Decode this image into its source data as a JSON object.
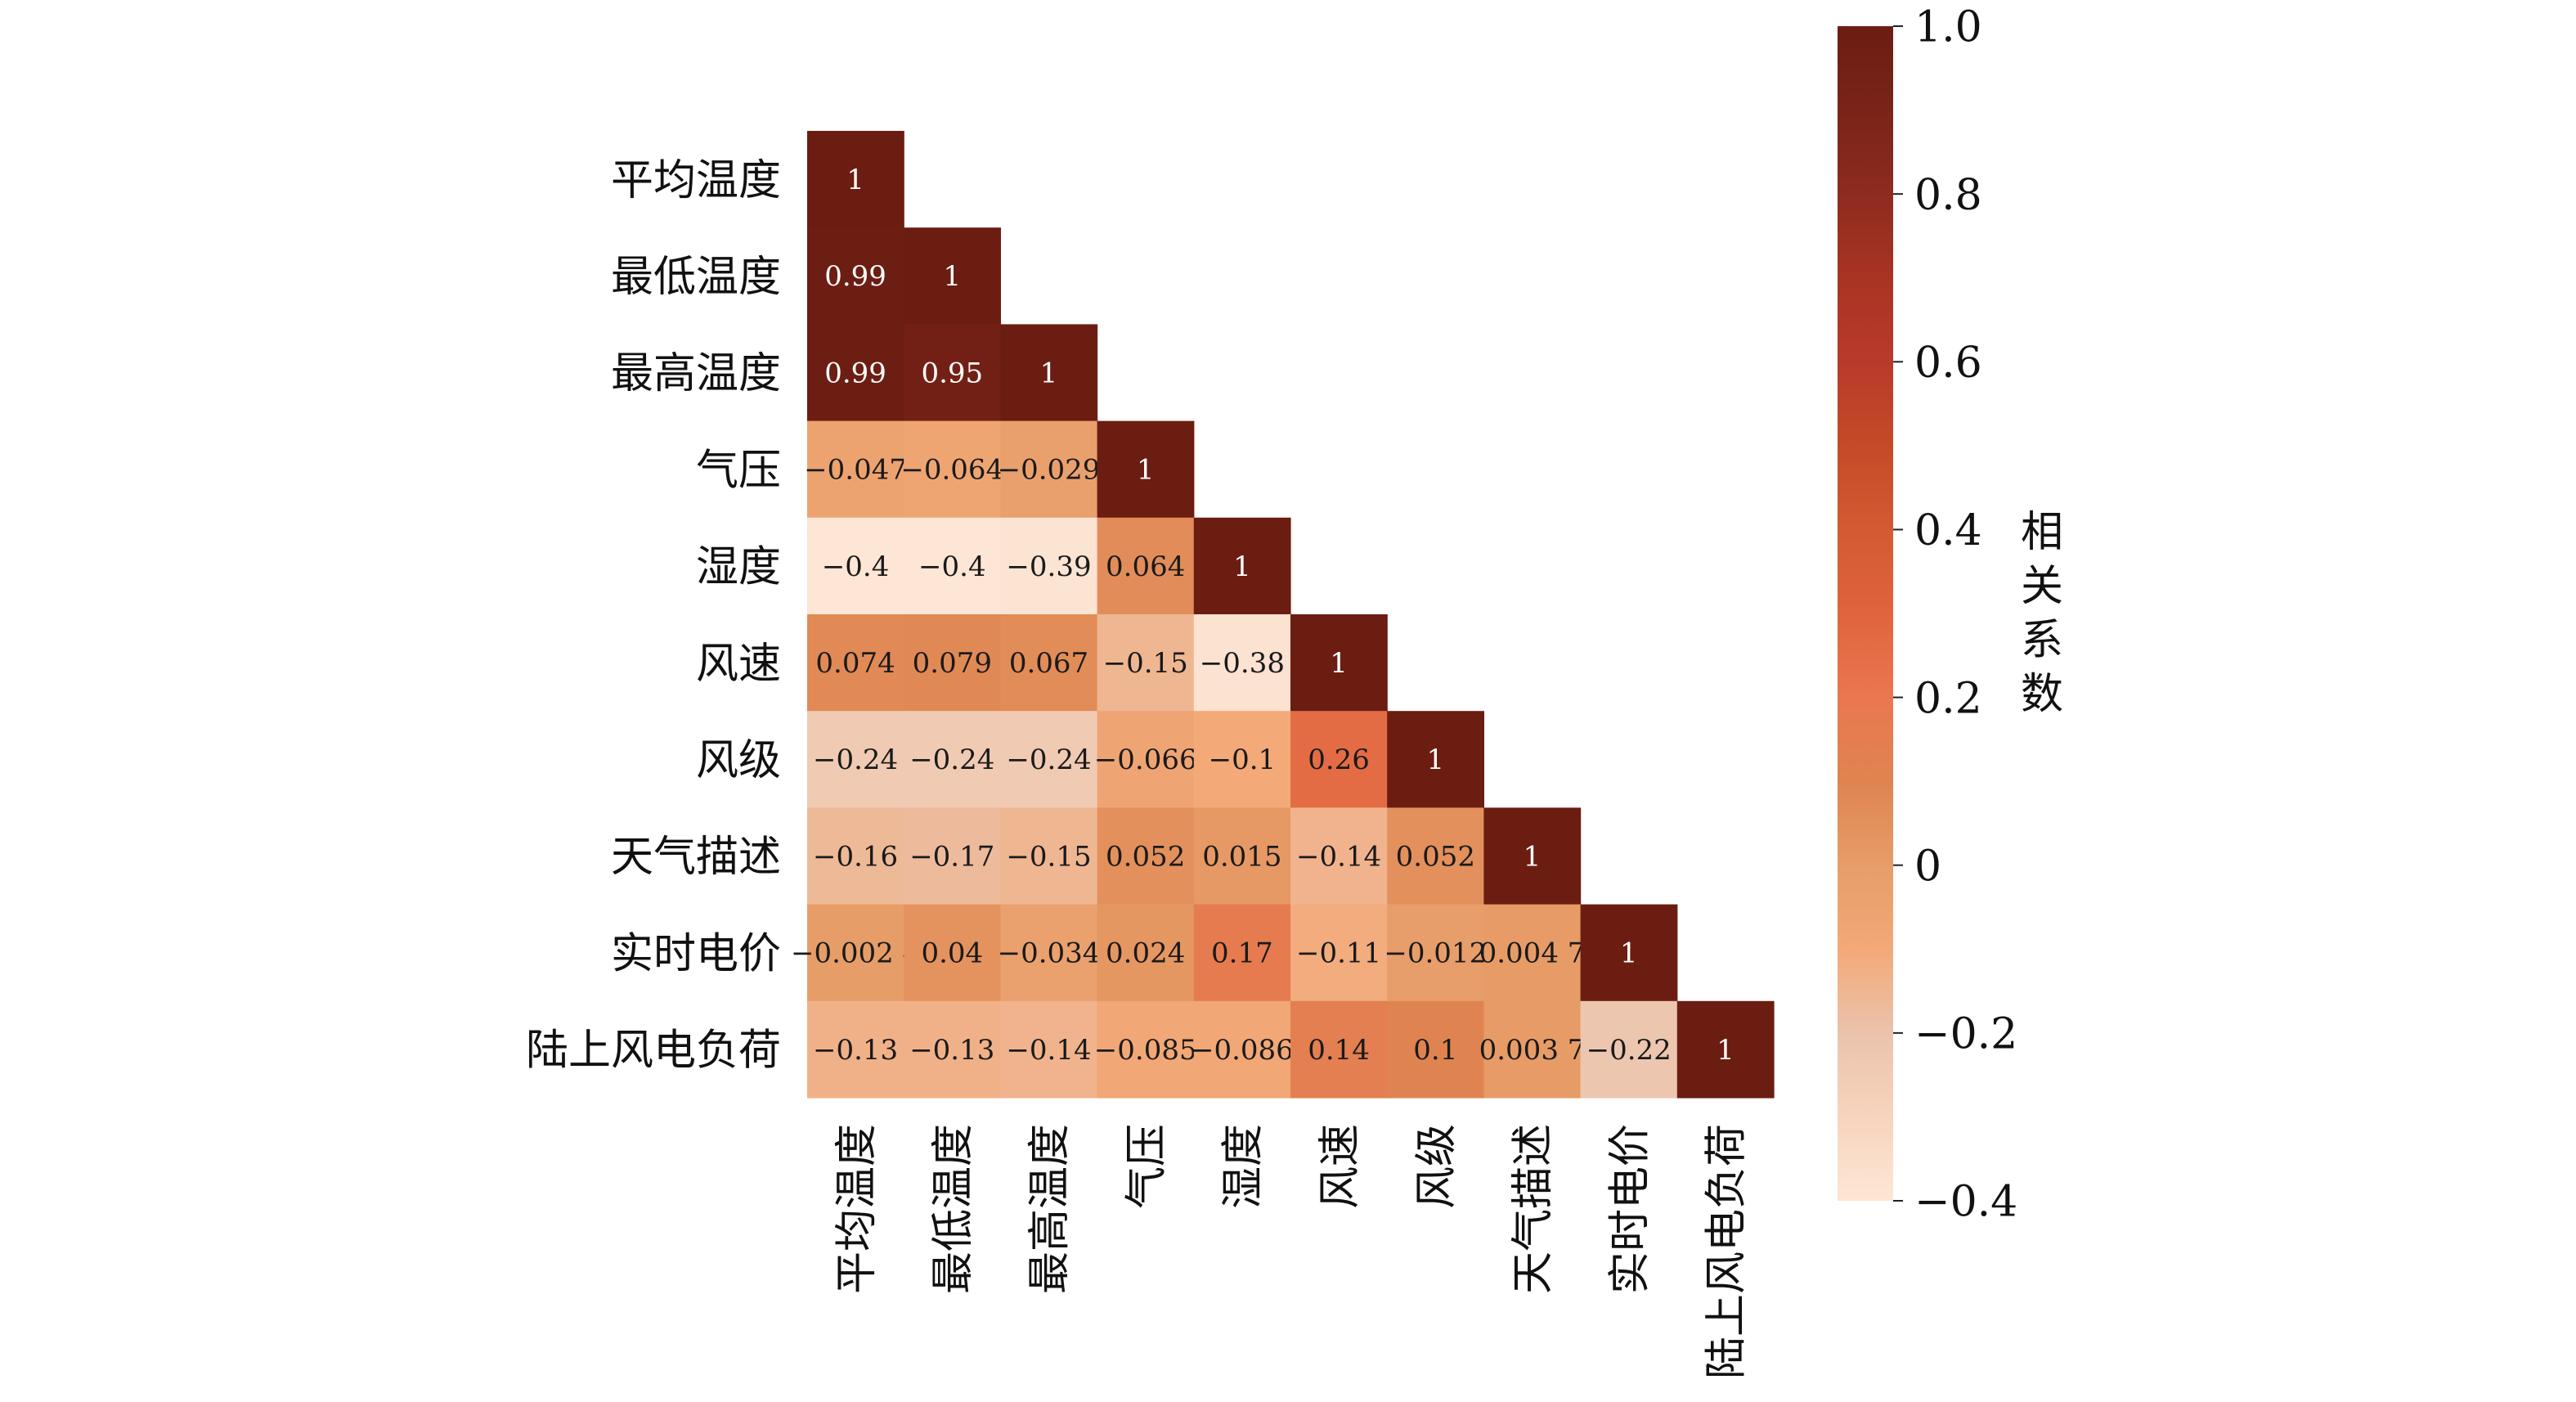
{
  "chart_data": {
    "type": "heatmap",
    "title": "",
    "xlabel": "",
    "ylabel": "",
    "variables": [
      "平均温度",
      "最低温度",
      "最高温度",
      "气压",
      "湿度",
      "风速",
      "风级",
      "天气描述",
      "实时电价",
      "陆上风电负荷"
    ],
    "values": [
      [
        1,
        null,
        null,
        null,
        null,
        null,
        null,
        null,
        null,
        null
      ],
      [
        0.99,
        1,
        null,
        null,
        null,
        null,
        null,
        null,
        null,
        null
      ],
      [
        0.99,
        0.95,
        1,
        null,
        null,
        null,
        null,
        null,
        null,
        null
      ],
      [
        -0.047,
        -0.064,
        -0.029,
        1,
        null,
        null,
        null,
        null,
        null,
        null
      ],
      [
        -0.4,
        -0.4,
        -0.39,
        0.064,
        1,
        null,
        null,
        null,
        null,
        null
      ],
      [
        0.074,
        0.079,
        0.067,
        -0.15,
        -0.38,
        1,
        null,
        null,
        null,
        null
      ],
      [
        -0.24,
        -0.24,
        -0.24,
        -0.066,
        -0.1,
        0.26,
        1,
        null,
        null,
        null
      ],
      [
        -0.16,
        -0.17,
        -0.15,
        0.052,
        0.015,
        -0.14,
        0.052,
        1,
        null,
        null
      ],
      [
        -0.0024,
        0.04,
        -0.034,
        0.024,
        0.17,
        -0.11,
        -0.012,
        0.0047,
        1,
        null
      ],
      [
        -0.13,
        -0.13,
        -0.14,
        -0.085,
        -0.086,
        0.14,
        0.1,
        0.0037,
        -0.22,
        1
      ]
    ],
    "cell_labels": [
      [
        "1"
      ],
      [
        "0.99",
        "1"
      ],
      [
        "0.99",
        "0.95",
        "1"
      ],
      [
        "−0.047",
        "−0.064",
        "−0.029",
        "1"
      ],
      [
        "−0.4",
        "−0.4",
        "−0.39",
        "0.064",
        "1"
      ],
      [
        "0.074",
        "0.079",
        "0.067",
        "−0.15",
        "−0.38",
        "1"
      ],
      [
        "−0.24",
        "−0.24",
        "−0.24",
        "−0.066",
        "−0.1",
        "0.26",
        "1"
      ],
      [
        "−0.16",
        "−0.17",
        "−0.15",
        "0.052",
        "0.015",
        "−0.14",
        "0.052",
        "1"
      ],
      [
        "−0.002 4",
        "0.04",
        "−0.034",
        "0.024",
        "0.17",
        "−0.11",
        "−0.012",
        "0.004 7",
        "1"
      ],
      [
        "−0.13",
        "−0.13",
        "−0.14",
        "−0.085",
        "−0.086",
        "0.14",
        "0.1",
        "0.003 7",
        "−0.22",
        "1"
      ]
    ],
    "colorbar": {
      "label": "相关系数",
      "range": [
        -0.4,
        1.0
      ],
      "ticks": [
        1.0,
        0.8,
        0.6,
        0.4,
        0.2,
        0,
        -0.2,
        -0.4
      ],
      "tick_labels": [
        "1.0",
        "0.8",
        "0.6",
        "0.4",
        "0.2",
        "0",
        "−0.2",
        "−0.4"
      ],
      "colormap": [
        "#fde6d5",
        "#f7d4bd",
        "#ebc3ac",
        "#f3a978",
        "#e79d68",
        "#df8450",
        "#ea7750",
        "#e0643c",
        "#d35a32",
        "#c54a28",
        "#b93a2a",
        "#a93423",
        "#8e2b1f",
        "#7a2418",
        "#6b1d12"
      ]
    },
    "grid": false,
    "legend": "right"
  }
}
